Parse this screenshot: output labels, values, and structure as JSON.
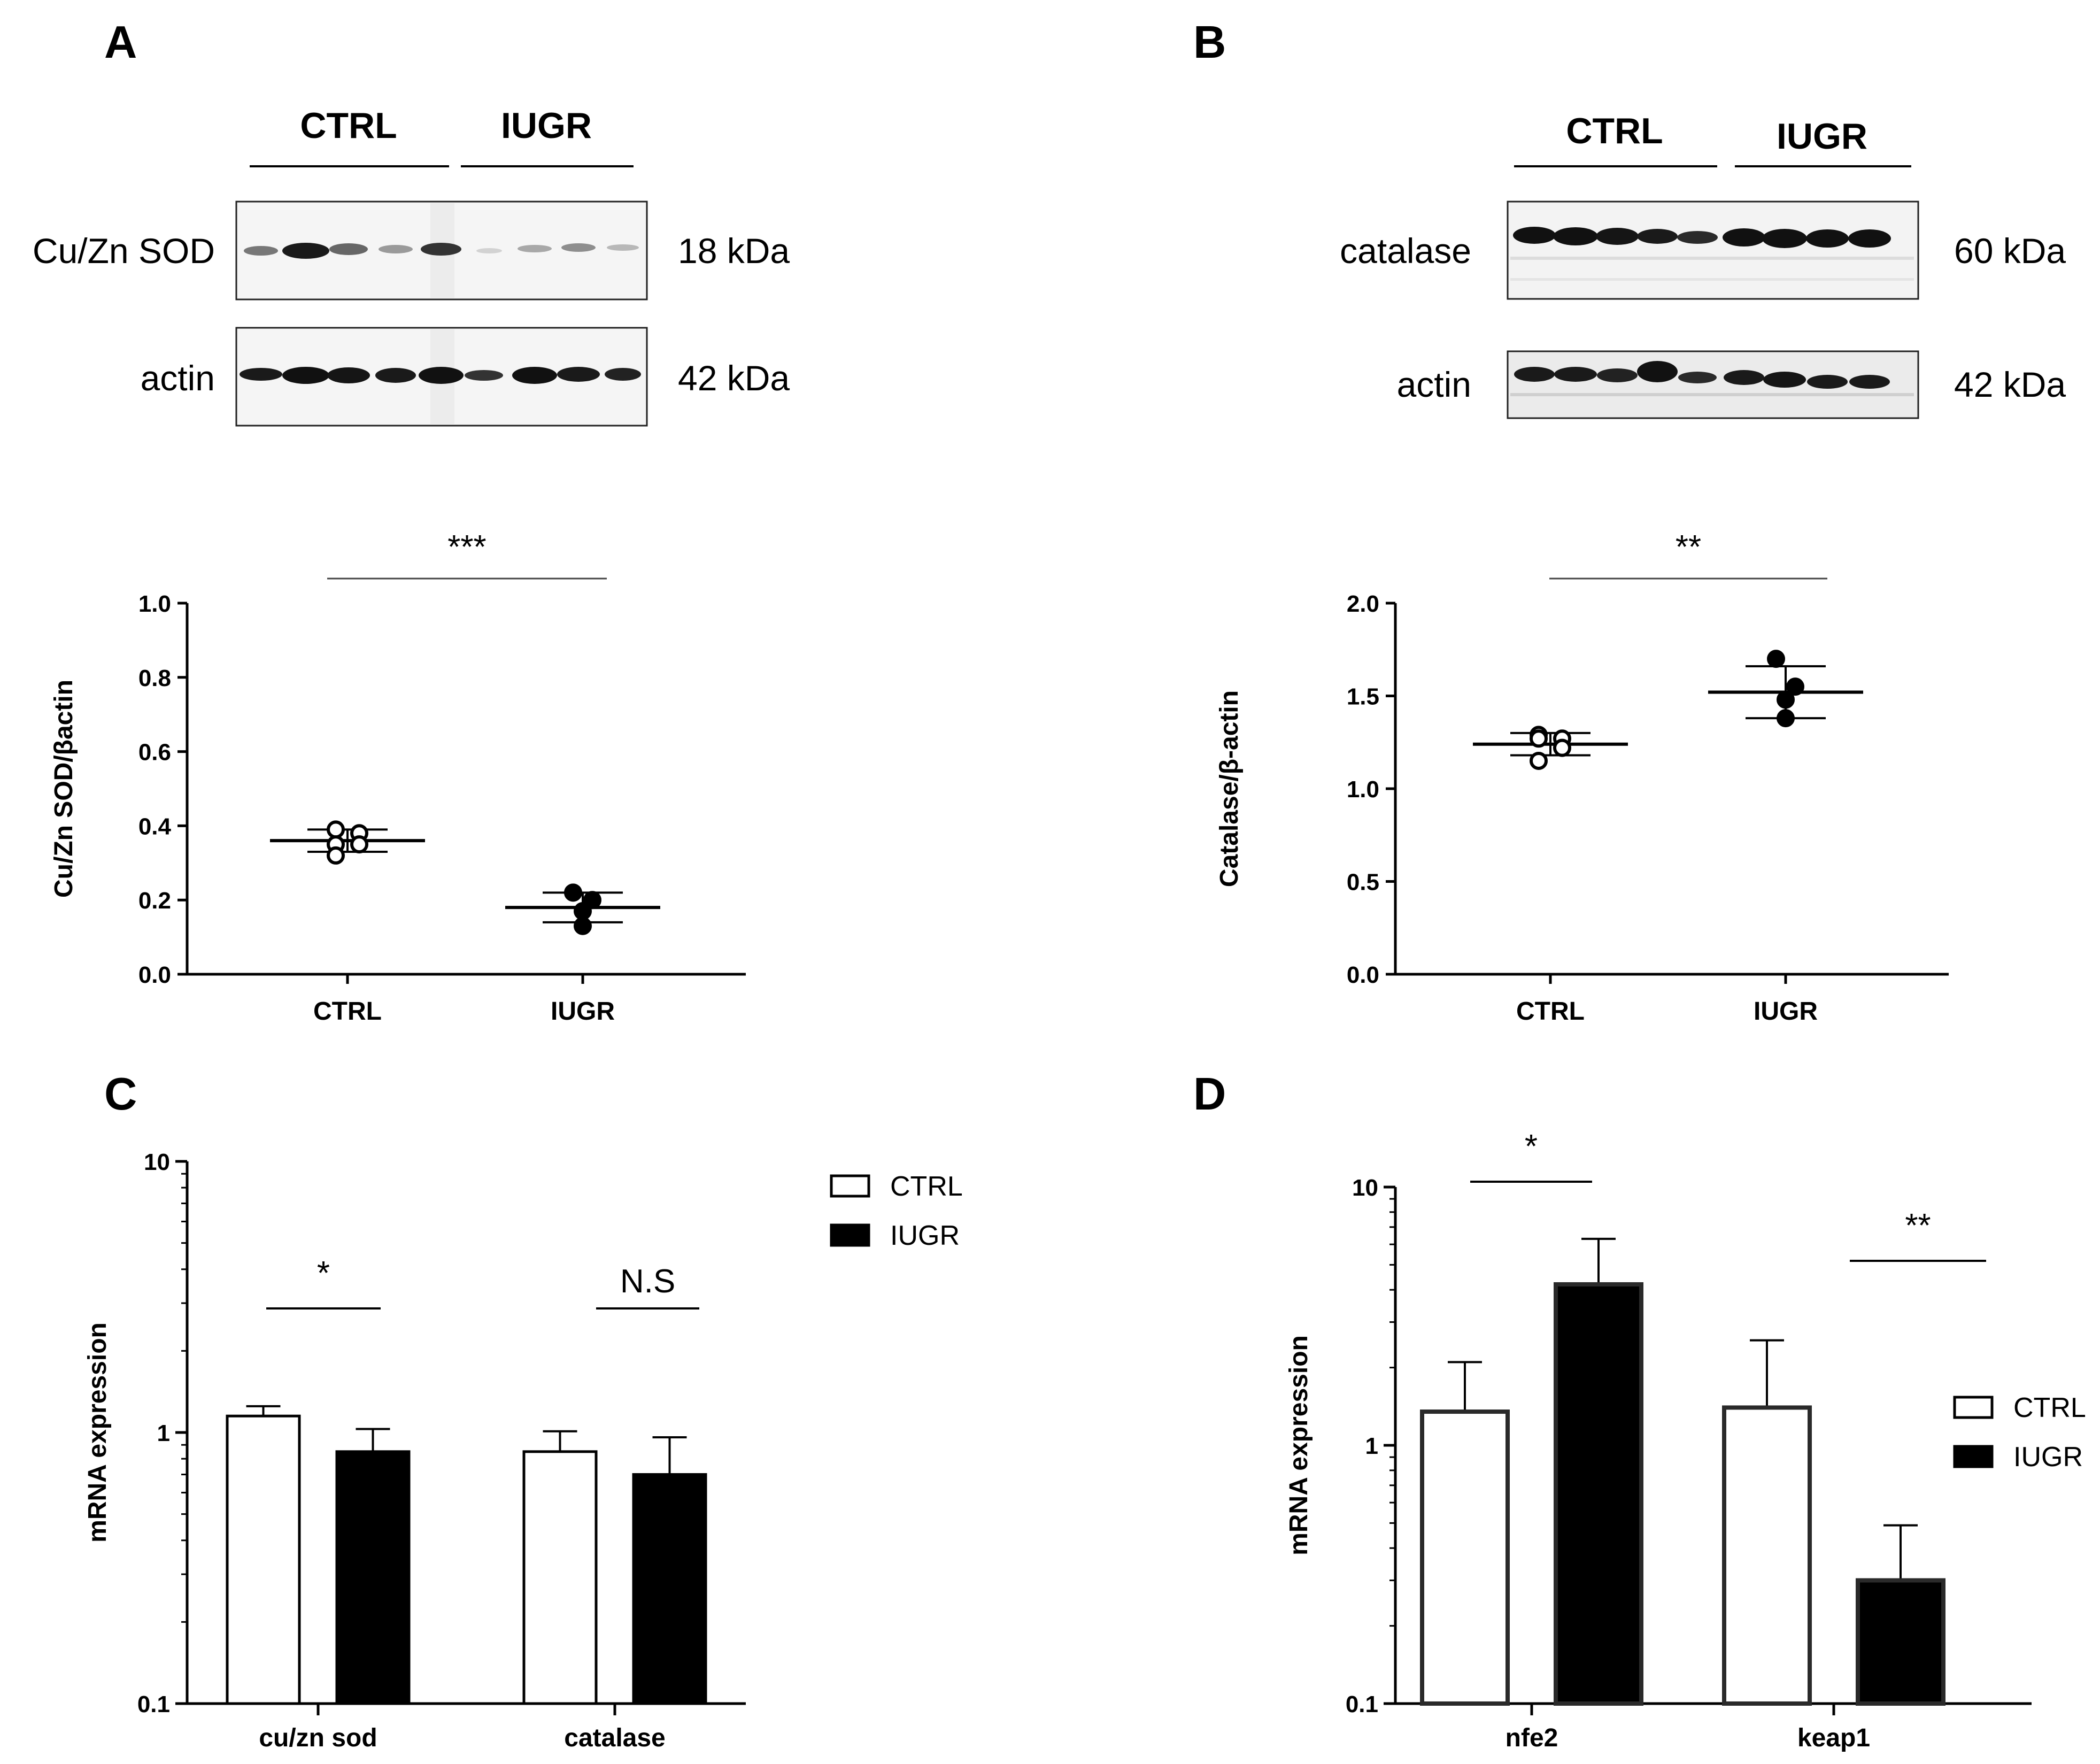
{
  "figure": {
    "panels": [
      {
        "letter": "A",
        "blot": {
          "groups": [
            "CTRL",
            "IUGR"
          ],
          "rows": [
            {
              "label": "Cu/Zn SOD",
              "size": "18 kDa"
            },
            {
              "label": "actin",
              "size": "42 kDa"
            }
          ]
        }
      },
      {
        "letter": "B",
        "blot": {
          "groups": [
            "CTRL",
            "IUGR"
          ],
          "rows": [
            {
              "label": "catalase",
              "size": "60 kDa"
            },
            {
              "label": "actin",
              "size": "42 kDa"
            }
          ]
        }
      },
      {
        "letter": "C"
      },
      {
        "letter": "D"
      }
    ]
  },
  "chart_data": [
    {
      "id": "A",
      "type": "scatter",
      "title": "",
      "ylabel": "Cu/Zn SOD/βactin",
      "xlabel": "",
      "categories": [
        "CTRL",
        "IUGR"
      ],
      "ylim": [
        0,
        1.0
      ],
      "yticks": [
        0.0,
        0.2,
        0.4,
        0.6,
        0.8,
        1.0
      ],
      "ytick_labels": [
        "0.0",
        "0.2",
        "0.4",
        "0.6",
        "0.8",
        "1.0"
      ],
      "series": [
        {
          "name": "CTRL",
          "marker": "open-circle",
          "points": [
            0.39,
            0.38,
            0.35,
            0.35,
            0.32
          ],
          "mean": 0.36,
          "sd": 0.03
        },
        {
          "name": "IUGR",
          "marker": "filled-circle",
          "points": [
            0.22,
            0.2,
            0.17,
            0.13
          ],
          "mean": 0.18,
          "sd": 0.04
        }
      ],
      "significance": [
        {
          "from": "CTRL",
          "to": "IUGR",
          "label": "***"
        }
      ]
    },
    {
      "id": "B",
      "type": "scatter",
      "title": "",
      "ylabel": "Catalase/β-actin",
      "xlabel": "",
      "categories": [
        "CTRL",
        "IUGR"
      ],
      "ylim": [
        0,
        2.0
      ],
      "yticks": [
        0.0,
        0.5,
        1.0,
        1.5,
        2.0
      ],
      "ytick_labels": [
        "0.0",
        "0.5",
        "1.0",
        "1.5",
        "2.0"
      ],
      "series": [
        {
          "name": "CTRL",
          "marker": "open-circle",
          "points": [
            1.29,
            1.27,
            1.27,
            1.22,
            1.15
          ],
          "mean": 1.24,
          "sd": 0.06
        },
        {
          "name": "IUGR",
          "marker": "filled-circle",
          "points": [
            1.7,
            1.55,
            1.48,
            1.38
          ],
          "mean": 1.52,
          "sd": 0.14
        }
      ],
      "significance": [
        {
          "from": "CTRL",
          "to": "IUGR",
          "label": "**"
        }
      ]
    },
    {
      "id": "C",
      "type": "bar",
      "title": "",
      "ylabel": "mRNA expression",
      "xlabel": "",
      "yscale": "log",
      "ylim": [
        0.1,
        10
      ],
      "yticks": [
        0.1,
        1,
        10
      ],
      "ytick_labels": [
        "0.1",
        "1",
        "10"
      ],
      "categories": [
        "cu/zn sod",
        "catalase"
      ],
      "series": [
        {
          "name": "CTRL",
          "color": "#ffffff",
          "values": [
            1.15,
            0.85
          ],
          "errors_upper": [
            1.25,
            1.01
          ]
        },
        {
          "name": "IUGR",
          "color": "#000000",
          "values": [
            0.85,
            0.7
          ],
          "errors_upper": [
            1.03,
            0.96
          ]
        }
      ],
      "legend": {
        "position": "top-right",
        "entries": [
          "CTRL",
          "IUGR"
        ]
      },
      "significance": [
        {
          "category": "cu/zn sod",
          "label": "*"
        },
        {
          "category": "catalase",
          "label": "N.S"
        }
      ]
    },
    {
      "id": "D",
      "type": "bar",
      "title": "",
      "ylabel": "mRNA expression",
      "xlabel": "",
      "yscale": "log",
      "ylim": [
        0.1,
        10
      ],
      "yticks": [
        0.1,
        1,
        10
      ],
      "ytick_labels": [
        "0.1",
        "1",
        "10"
      ],
      "categories": [
        "nfe2",
        "keap1"
      ],
      "series": [
        {
          "name": "CTRL",
          "color": "#ffffff",
          "values": [
            1.35,
            1.4
          ],
          "errors_upper": [
            2.1,
            2.55
          ]
        },
        {
          "name": "IUGR",
          "color": "#000000",
          "values": [
            4.2,
            0.3
          ],
          "errors_upper": [
            6.3,
            0.49
          ]
        }
      ],
      "legend": {
        "position": "right",
        "entries": [
          "CTRL",
          "IUGR"
        ]
      },
      "significance": [
        {
          "category": "nfe2",
          "label": "*"
        },
        {
          "category": "keap1",
          "label": "**"
        }
      ]
    }
  ]
}
